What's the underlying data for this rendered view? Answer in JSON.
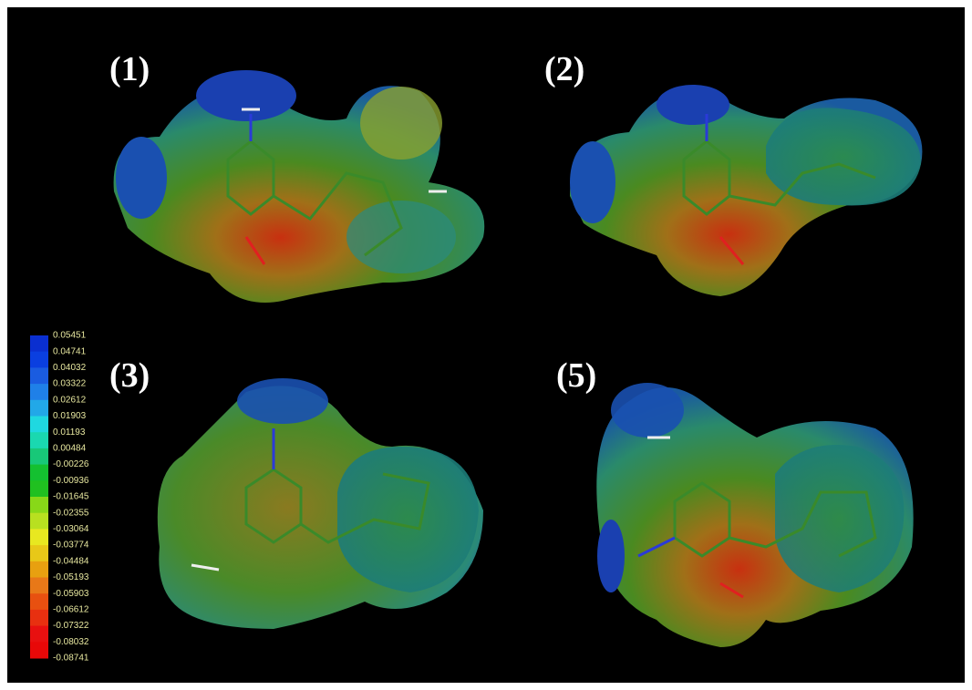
{
  "panels": [
    {
      "label": "(1)"
    },
    {
      "label": "(2)"
    },
    {
      "label": "(3)"
    },
    {
      "label": "(5)"
    }
  ],
  "scale": {
    "labels": [
      "0.05451",
      "0.04741",
      "0.04032",
      "0.03322",
      "0.02612",
      "0.01903",
      "0.01193",
      "0.00484",
      "-0.00226",
      "-0.00936",
      "-0.01645",
      "-0.02355",
      "-0.03064",
      "-0.03774",
      "-0.04484",
      "-0.05193",
      "-0.05903",
      "-0.06612",
      "-0.07322",
      "-0.08032",
      "-0.08741"
    ],
    "colors": [
      "#0a2fd0",
      "#0a3fe0",
      "#1a5ce0",
      "#1f80e8",
      "#22a8e8",
      "#1fd8e0",
      "#1ad8b0",
      "#18c878",
      "#14c030",
      "#20c020",
      "#88d818",
      "#b8e020",
      "#e8e820",
      "#e8c818",
      "#e8a010",
      "#e87818",
      "#e85010",
      "#e83010",
      "#e81010",
      "#e80808"
    ]
  }
}
